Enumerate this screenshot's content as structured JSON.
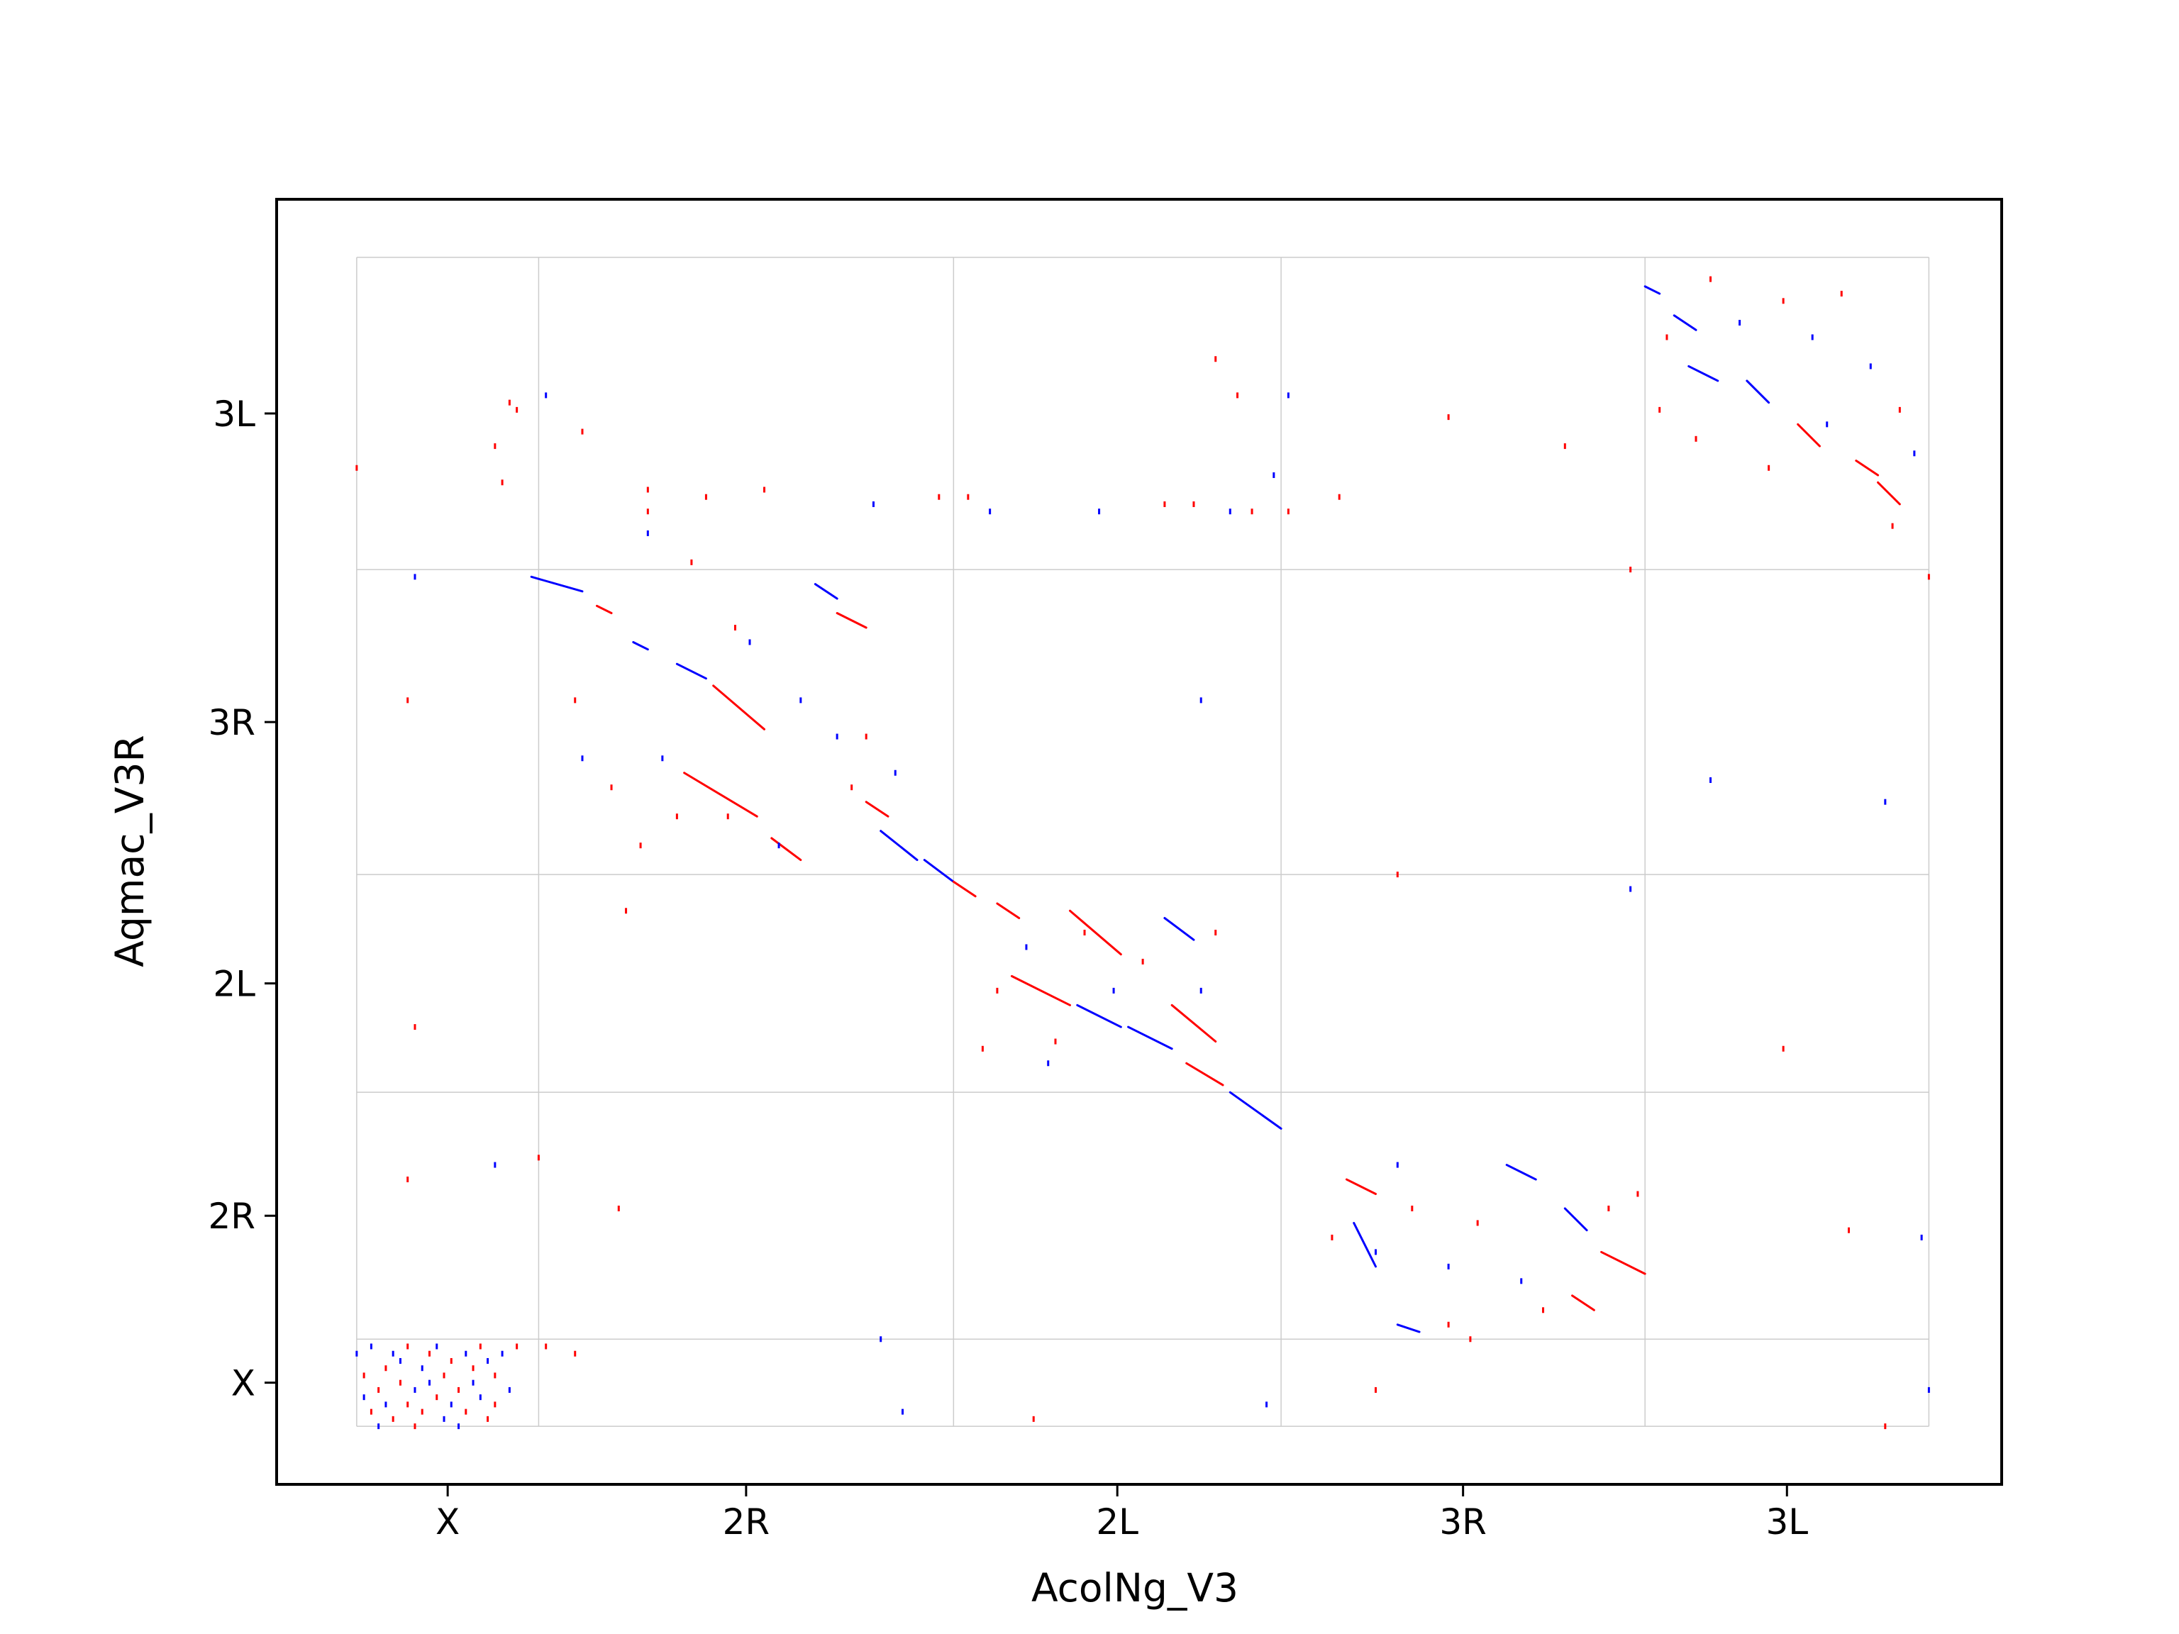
{
  "chart_data": {
    "type": "scatter",
    "title": "",
    "xlabel": "AcolNg_V3",
    "ylabel": "Aqmac_V3R",
    "grid": true,
    "legend": "none",
    "colors": {
      "forward": "#ff0000",
      "reverse": "#0000ff",
      "grid": "#cccccc",
      "frame": "#000000"
    },
    "x_chromosomes": [
      {
        "name": "X",
        "start": 0,
        "end": 25
      },
      {
        "name": "2R",
        "start": 25,
        "end": 82
      },
      {
        "name": "2L",
        "start": 82,
        "end": 127
      },
      {
        "name": "3R",
        "start": 127,
        "end": 177
      },
      {
        "name": "3L",
        "start": 177,
        "end": 216
      }
    ],
    "y_chromosomes": [
      {
        "name": "X",
        "start": 0,
        "end": 12
      },
      {
        "name": "2R",
        "start": 12,
        "end": 46
      },
      {
        "name": "2L",
        "start": 46,
        "end": 76
      },
      {
        "name": "3R",
        "start": 76,
        "end": 118
      },
      {
        "name": "3L",
        "start": 118,
        "end": 161
      }
    ],
    "xlim": [
      -11,
      226
    ],
    "ylim": [
      -8,
      169
    ],
    "segments": [
      {
        "x1": 24,
        "y1": 117,
        "x2": 31,
        "y2": 115,
        "strand": "reverse"
      },
      {
        "x1": 33,
        "y1": 113,
        "x2": 35,
        "y2": 112,
        "strand": "forward"
      },
      {
        "x1": 38,
        "y1": 108,
        "x2": 40,
        "y2": 107,
        "strand": "reverse"
      },
      {
        "x1": 44,
        "y1": 105,
        "x2": 48,
        "y2": 103,
        "strand": "reverse"
      },
      {
        "x1": 49,
        "y1": 102,
        "x2": 56,
        "y2": 96,
        "strand": "forward"
      },
      {
        "x1": 45,
        "y1": 90,
        "x2": 55,
        "y2": 84,
        "strand": "forward"
      },
      {
        "x1": 57,
        "y1": 81,
        "x2": 61,
        "y2": 78,
        "strand": "forward"
      },
      {
        "x1": 63,
        "y1": 116,
        "x2": 66,
        "y2": 114,
        "strand": "reverse"
      },
      {
        "x1": 66,
        "y1": 112,
        "x2": 70,
        "y2": 110,
        "strand": "forward"
      },
      {
        "x1": 70,
        "y1": 86,
        "x2": 73,
        "y2": 84,
        "strand": "forward"
      },
      {
        "x1": 72,
        "y1": 82,
        "x2": 77,
        "y2": 78,
        "strand": "reverse"
      },
      {
        "x1": 78,
        "y1": 78,
        "x2": 82,
        "y2": 75,
        "strand": "reverse"
      },
      {
        "x1": 82,
        "y1": 75,
        "x2": 85,
        "y2": 73,
        "strand": "forward"
      },
      {
        "x1": 88,
        "y1": 72,
        "x2": 91,
        "y2": 70,
        "strand": "forward"
      },
      {
        "x1": 90,
        "y1": 62,
        "x2": 98,
        "y2": 58,
        "strand": "forward"
      },
      {
        "x1": 98,
        "y1": 71,
        "x2": 105,
        "y2": 65,
        "strand": "forward"
      },
      {
        "x1": 99,
        "y1": 58,
        "x2": 105,
        "y2": 55,
        "strand": "reverse"
      },
      {
        "x1": 106,
        "y1": 55,
        "x2": 112,
        "y2": 52,
        "strand": "reverse"
      },
      {
        "x1": 111,
        "y1": 70,
        "x2": 115,
        "y2": 67,
        "strand": "reverse"
      },
      {
        "x1": 112,
        "y1": 58,
        "x2": 118,
        "y2": 53,
        "strand": "forward"
      },
      {
        "x1": 114,
        "y1": 50,
        "x2": 119,
        "y2": 47,
        "strand": "forward"
      },
      {
        "x1": 120,
        "y1": 46,
        "x2": 127,
        "y2": 41,
        "strand": "reverse"
      },
      {
        "x1": 136,
        "y1": 34,
        "x2": 140,
        "y2": 32,
        "strand": "forward"
      },
      {
        "x1": 137,
        "y1": 28,
        "x2": 140,
        "y2": 22,
        "strand": "reverse"
      },
      {
        "x1": 143,
        "y1": 14,
        "x2": 146,
        "y2": 13,
        "strand": "reverse"
      },
      {
        "x1": 158,
        "y1": 36,
        "x2": 162,
        "y2": 34,
        "strand": "reverse"
      },
      {
        "x1": 166,
        "y1": 30,
        "x2": 169,
        "y2": 27,
        "strand": "reverse"
      },
      {
        "x1": 167,
        "y1": 18,
        "x2": 170,
        "y2": 16,
        "strand": "forward"
      },
      {
        "x1": 171,
        "y1": 24,
        "x2": 177,
        "y2": 21,
        "strand": "forward"
      },
      {
        "x1": 177,
        "y1": 157,
        "x2": 179,
        "y2": 156,
        "strand": "reverse"
      },
      {
        "x1": 181,
        "y1": 153,
        "x2": 184,
        "y2": 151,
        "strand": "reverse"
      },
      {
        "x1": 183,
        "y1": 146,
        "x2": 187,
        "y2": 144,
        "strand": "reverse"
      },
      {
        "x1": 191,
        "y1": 144,
        "x2": 194,
        "y2": 141,
        "strand": "reverse"
      },
      {
        "x1": 198,
        "y1": 138,
        "x2": 201,
        "y2": 135,
        "strand": "forward"
      },
      {
        "x1": 206,
        "y1": 133,
        "x2": 209,
        "y2": 131,
        "strand": "forward"
      },
      {
        "x1": 209,
        "y1": 130,
        "x2": 212,
        "y2": 127,
        "strand": "forward"
      }
    ],
    "points": [
      {
        "x": 0,
        "y": 10,
        "strand": "reverse"
      },
      {
        "x": 1,
        "y": 4,
        "strand": "reverse"
      },
      {
        "x": 1,
        "y": 7,
        "strand": "forward"
      },
      {
        "x": 2,
        "y": 2,
        "strand": "forward"
      },
      {
        "x": 2,
        "y": 11,
        "strand": "reverse"
      },
      {
        "x": 3,
        "y": 5,
        "strand": "forward"
      },
      {
        "x": 3,
        "y": 0,
        "strand": "reverse"
      },
      {
        "x": 4,
        "y": 8,
        "strand": "forward"
      },
      {
        "x": 4,
        "y": 3,
        "strand": "reverse"
      },
      {
        "x": 5,
        "y": 10,
        "strand": "reverse"
      },
      {
        "x": 5,
        "y": 1,
        "strand": "forward"
      },
      {
        "x": 6,
        "y": 6,
        "strand": "forward"
      },
      {
        "x": 6,
        "y": 9,
        "strand": "reverse"
      },
      {
        "x": 7,
        "y": 3,
        "strand": "forward"
      },
      {
        "x": 7,
        "y": 11,
        "strand": "forward"
      },
      {
        "x": 8,
        "y": 5,
        "strand": "reverse"
      },
      {
        "x": 8,
        "y": 0,
        "strand": "forward"
      },
      {
        "x": 9,
        "y": 8,
        "strand": "reverse"
      },
      {
        "x": 9,
        "y": 2,
        "strand": "forward"
      },
      {
        "x": 10,
        "y": 10,
        "strand": "forward"
      },
      {
        "x": 10,
        "y": 6,
        "strand": "reverse"
      },
      {
        "x": 11,
        "y": 4,
        "strand": "forward"
      },
      {
        "x": 11,
        "y": 11,
        "strand": "reverse"
      },
      {
        "x": 12,
        "y": 1,
        "strand": "reverse"
      },
      {
        "x": 12,
        "y": 7,
        "strand": "forward"
      },
      {
        "x": 13,
        "y": 9,
        "strand": "forward"
      },
      {
        "x": 13,
        "y": 3,
        "strand": "reverse"
      },
      {
        "x": 14,
        "y": 5,
        "strand": "forward"
      },
      {
        "x": 14,
        "y": 0,
        "strand": "reverse"
      },
      {
        "x": 15,
        "y": 10,
        "strand": "reverse"
      },
      {
        "x": 15,
        "y": 2,
        "strand": "forward"
      },
      {
        "x": 16,
        "y": 8,
        "strand": "forward"
      },
      {
        "x": 16,
        "y": 6,
        "strand": "reverse"
      },
      {
        "x": 17,
        "y": 11,
        "strand": "forward"
      },
      {
        "x": 17,
        "y": 4,
        "strand": "reverse"
      },
      {
        "x": 18,
        "y": 1,
        "strand": "forward"
      },
      {
        "x": 18,
        "y": 9,
        "strand": "reverse"
      },
      {
        "x": 19,
        "y": 7,
        "strand": "forward"
      },
      {
        "x": 19,
        "y": 3,
        "strand": "forward"
      },
      {
        "x": 20,
        "y": 10,
        "strand": "reverse"
      },
      {
        "x": 21,
        "y": 5,
        "strand": "reverse"
      },
      {
        "x": 22,
        "y": 11,
        "strand": "forward"
      },
      {
        "x": 26,
        "y": 11,
        "strand": "forward"
      },
      {
        "x": 30,
        "y": 10,
        "strand": "forward"
      },
      {
        "x": 19,
        "y": 36,
        "strand": "reverse"
      },
      {
        "x": 25,
        "y": 37,
        "strand": "forward"
      },
      {
        "x": 8,
        "y": 55,
        "strand": "forward"
      },
      {
        "x": 7,
        "y": 100,
        "strand": "forward"
      },
      {
        "x": 8,
        "y": 117,
        "strand": "reverse"
      },
      {
        "x": 0,
        "y": 132,
        "strand": "forward"
      },
      {
        "x": 19,
        "y": 135,
        "strand": "forward"
      },
      {
        "x": 20,
        "y": 130,
        "strand": "forward"
      },
      {
        "x": 22,
        "y": 140,
        "strand": "forward"
      },
      {
        "x": 26,
        "y": 142,
        "strand": "reverse"
      },
      {
        "x": 21,
        "y": 141,
        "strand": "forward"
      },
      {
        "x": 31,
        "y": 137,
        "strand": "forward"
      },
      {
        "x": 40,
        "y": 129,
        "strand": "forward"
      },
      {
        "x": 40,
        "y": 126,
        "strand": "forward"
      },
      {
        "x": 40,
        "y": 123,
        "strand": "reverse"
      },
      {
        "x": 48,
        "y": 128,
        "strand": "forward"
      },
      {
        "x": 56,
        "y": 129,
        "strand": "forward"
      },
      {
        "x": 71,
        "y": 127,
        "strand": "reverse"
      },
      {
        "x": 80,
        "y": 128,
        "strand": "forward"
      },
      {
        "x": 84,
        "y": 128,
        "strand": "forward"
      },
      {
        "x": 87,
        "y": 126,
        "strand": "reverse"
      },
      {
        "x": 102,
        "y": 126,
        "strand": "reverse"
      },
      {
        "x": 111,
        "y": 127,
        "strand": "forward"
      },
      {
        "x": 115,
        "y": 127,
        "strand": "forward"
      },
      {
        "x": 120,
        "y": 126,
        "strand": "reverse"
      },
      {
        "x": 123,
        "y": 126,
        "strand": "forward"
      },
      {
        "x": 128,
        "y": 126,
        "strand": "forward"
      },
      {
        "x": 135,
        "y": 128,
        "strand": "forward"
      },
      {
        "x": 118,
        "y": 147,
        "strand": "forward"
      },
      {
        "x": 121,
        "y": 142,
        "strand": "forward"
      },
      {
        "x": 128,
        "y": 142,
        "strand": "reverse"
      },
      {
        "x": 126,
        "y": 131,
        "strand": "reverse"
      },
      {
        "x": 150,
        "y": 139,
        "strand": "forward"
      },
      {
        "x": 166,
        "y": 135,
        "strand": "forward"
      },
      {
        "x": 116,
        "y": 100,
        "strand": "reverse"
      },
      {
        "x": 7,
        "y": 34,
        "strand": "forward"
      },
      {
        "x": 36,
        "y": 30,
        "strand": "forward"
      },
      {
        "x": 37,
        "y": 71,
        "strand": "forward"
      },
      {
        "x": 51,
        "y": 84,
        "strand": "forward"
      },
      {
        "x": 58,
        "y": 80,
        "strand": "reverse"
      },
      {
        "x": 72,
        "y": 12,
        "strand": "reverse"
      },
      {
        "x": 75,
        "y": 2,
        "strand": "reverse"
      },
      {
        "x": 93,
        "y": 1,
        "strand": "forward"
      },
      {
        "x": 125,
        "y": 3,
        "strand": "reverse"
      },
      {
        "x": 140,
        "y": 5,
        "strand": "forward"
      },
      {
        "x": 143,
        "y": 36,
        "strand": "reverse"
      },
      {
        "x": 143,
        "y": 76,
        "strand": "forward"
      },
      {
        "x": 153,
        "y": 12,
        "strand": "forward"
      },
      {
        "x": 186,
        "y": 89,
        "strand": "reverse"
      },
      {
        "x": 196,
        "y": 52,
        "strand": "forward"
      },
      {
        "x": 205,
        "y": 27,
        "strand": "forward"
      },
      {
        "x": 210,
        "y": 86,
        "strand": "reverse"
      },
      {
        "x": 215,
        "y": 26,
        "strand": "reverse"
      },
      {
        "x": 210,
        "y": 0,
        "strand": "forward"
      },
      {
        "x": 216,
        "y": 5,
        "strand": "reverse"
      },
      {
        "x": 216,
        "y": 117,
        "strand": "forward"
      },
      {
        "x": 175,
        "y": 74,
        "strand": "reverse"
      },
      {
        "x": 175,
        "y": 118,
        "strand": "forward"
      },
      {
        "x": 46,
        "y": 119,
        "strand": "forward"
      },
      {
        "x": 61,
        "y": 100,
        "strand": "reverse"
      },
      {
        "x": 70,
        "y": 95,
        "strand": "forward"
      },
      {
        "x": 74,
        "y": 90,
        "strand": "reverse"
      },
      {
        "x": 54,
        "y": 108,
        "strand": "reverse"
      },
      {
        "x": 52,
        "y": 110,
        "strand": "forward"
      },
      {
        "x": 42,
        "y": 92,
        "strand": "reverse"
      },
      {
        "x": 44,
        "y": 84,
        "strand": "forward"
      },
      {
        "x": 66,
        "y": 95,
        "strand": "reverse"
      },
      {
        "x": 68,
        "y": 88,
        "strand": "forward"
      },
      {
        "x": 30,
        "y": 100,
        "strand": "forward"
      },
      {
        "x": 31,
        "y": 92,
        "strand": "reverse"
      },
      {
        "x": 35,
        "y": 88,
        "strand": "forward"
      },
      {
        "x": 39,
        "y": 80,
        "strand": "forward"
      },
      {
        "x": 88,
        "y": 60,
        "strand": "forward"
      },
      {
        "x": 92,
        "y": 66,
        "strand": "reverse"
      },
      {
        "x": 96,
        "y": 53,
        "strand": "forward"
      },
      {
        "x": 100,
        "y": 68,
        "strand": "forward"
      },
      {
        "x": 104,
        "y": 60,
        "strand": "reverse"
      },
      {
        "x": 108,
        "y": 64,
        "strand": "forward"
      },
      {
        "x": 116,
        "y": 60,
        "strand": "reverse"
      },
      {
        "x": 118,
        "y": 68,
        "strand": "forward"
      },
      {
        "x": 86,
        "y": 52,
        "strand": "forward"
      },
      {
        "x": 95,
        "y": 50,
        "strand": "reverse"
      },
      {
        "x": 134,
        "y": 26,
        "strand": "forward"
      },
      {
        "x": 140,
        "y": 24,
        "strand": "reverse"
      },
      {
        "x": 145,
        "y": 30,
        "strand": "forward"
      },
      {
        "x": 150,
        "y": 22,
        "strand": "reverse"
      },
      {
        "x": 154,
        "y": 28,
        "strand": "forward"
      },
      {
        "x": 160,
        "y": 20,
        "strand": "reverse"
      },
      {
        "x": 163,
        "y": 16,
        "strand": "forward"
      },
      {
        "x": 172,
        "y": 30,
        "strand": "forward"
      },
      {
        "x": 176,
        "y": 32,
        "strand": "forward"
      },
      {
        "x": 150,
        "y": 14,
        "strand": "forward"
      },
      {
        "x": 180,
        "y": 150,
        "strand": "forward"
      },
      {
        "x": 186,
        "y": 158,
        "strand": "forward"
      },
      {
        "x": 190,
        "y": 152,
        "strand": "reverse"
      },
      {
        "x": 196,
        "y": 155,
        "strand": "forward"
      },
      {
        "x": 200,
        "y": 150,
        "strand": "reverse"
      },
      {
        "x": 204,
        "y": 156,
        "strand": "forward"
      },
      {
        "x": 208,
        "y": 146,
        "strand": "reverse"
      },
      {
        "x": 212,
        "y": 140,
        "strand": "forward"
      },
      {
        "x": 214,
        "y": 134,
        "strand": "reverse"
      },
      {
        "x": 179,
        "y": 140,
        "strand": "forward"
      },
      {
        "x": 184,
        "y": 136,
        "strand": "forward"
      },
      {
        "x": 194,
        "y": 132,
        "strand": "forward"
      },
      {
        "x": 202,
        "y": 138,
        "strand": "reverse"
      },
      {
        "x": 211,
        "y": 124,
        "strand": "forward"
      }
    ]
  }
}
